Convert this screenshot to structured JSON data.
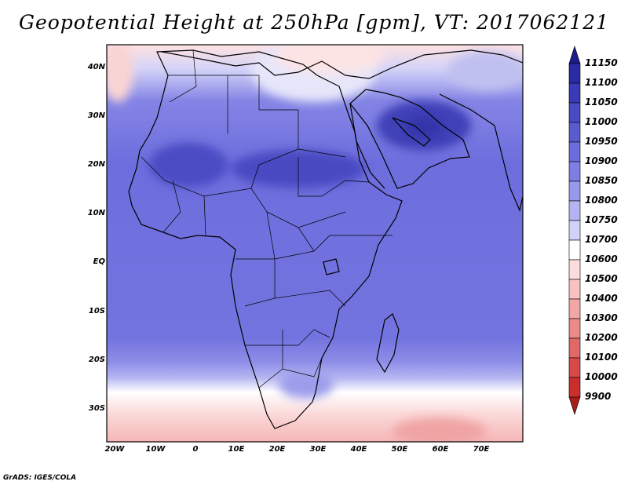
{
  "title": "Geopotential Height at 250hPa [gpm], VT: 2017062121",
  "lat_labels": [
    "40N",
    "30N",
    "20N",
    "10N",
    "EQ",
    "10S",
    "20S",
    "30S"
  ],
  "lon_labels": [
    "20W",
    "10W",
    "0",
    "10E",
    "20E",
    "30E",
    "40E",
    "50E",
    "60E",
    "70E"
  ],
  "colorbar": {
    "levels": [
      "11150",
      "11100",
      "11050",
      "11000",
      "10950",
      "10900",
      "10850",
      "10800",
      "10750",
      "10700",
      "10600",
      "10500",
      "10400",
      "10300",
      "10200",
      "10100",
      "10000",
      "9900"
    ],
    "colors": [
      "#1c1c88",
      "#2a2aa6",
      "#3a3ab8",
      "#4a4ac6",
      "#5b5bd0",
      "#6c6cdc",
      "#7e7ee4",
      "#9898ec",
      "#b4b4f2",
      "#d2d2f8",
      "#ffffff",
      "#fcdcdc",
      "#f8c2c2",
      "#f2a6a6",
      "#ec8a8a",
      "#e26868",
      "#d84a4a",
      "#cc2e2e",
      "#a81c1c"
    ]
  },
  "footer": "GrADS: IGES/COLA"
}
